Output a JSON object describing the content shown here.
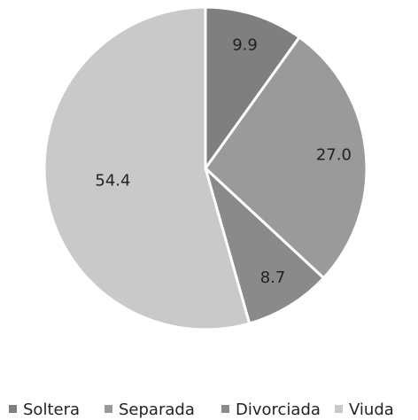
{
  "chart_data": {
    "type": "pie",
    "categories": [
      "Soltera",
      "Separada",
      "Divorciada",
      "Viuda"
    ],
    "values": [
      9.9,
      27.0,
      8.7,
      54.4
    ],
    "value_labels": [
      "9.9",
      "27.0",
      "8.7",
      "54.4"
    ],
    "colors": [
      "#7f7f7f",
      "#9a9a9a",
      "#8a8a8a",
      "#c9c9c9"
    ],
    "legend": "bottom"
  }
}
